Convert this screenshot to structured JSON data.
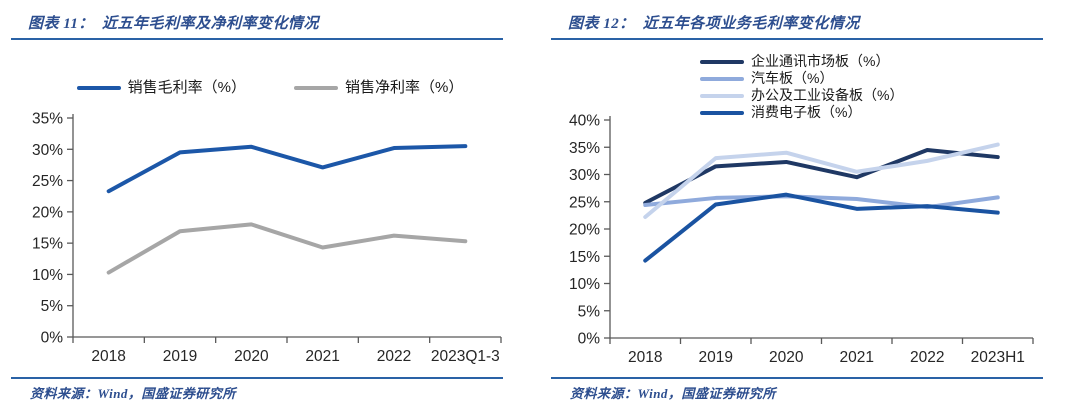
{
  "accent": {
    "rule_color": "#2a62a6",
    "title_color": "#2d4e8f",
    "axis_color": "#595959",
    "tick_label_color": "#262626"
  },
  "panels": [
    {
      "figure_label": "图表 11：",
      "title": "近五年毛利率及净利率变化情况",
      "source": "资料来源：Wind，国盛证券研究所"
    },
    {
      "figure_label": "图表 12：",
      "title": "近五年各项业务毛利率变化情况",
      "source": "资料来源：Wind，国盛证券研究所"
    }
  ],
  "chart_data": [
    {
      "type": "line",
      "title": "近五年毛利率及净利率变化情况",
      "categories": [
        "2018",
        "2019",
        "2020",
        "2021",
        "2022",
        "2023Q1-3"
      ],
      "series": [
        {
          "name": "销售毛利率（%）",
          "color": "#1c57a8",
          "values": [
            23.3,
            29.5,
            30.4,
            27.1,
            30.2,
            30.5
          ]
        },
        {
          "name": "销售净利率（%）",
          "color": "#a6a6a6",
          "values": [
            10.3,
            16.9,
            18.0,
            14.3,
            16.2,
            15.3
          ]
        }
      ],
      "ylim": [
        0,
        35
      ],
      "ytick_step": 5,
      "ytick_suffix": "%",
      "grid": false,
      "legend_position": "top-horizontal"
    },
    {
      "type": "line",
      "title": "近五年各项业务毛利率变化情况",
      "categories": [
        "2018",
        "2019",
        "2020",
        "2021",
        "2022",
        "2023H1"
      ],
      "series": [
        {
          "name": "企业通讯市场板（%）",
          "color": "#1f3864",
          "values": [
            24.8,
            31.5,
            32.3,
            29.5,
            34.5,
            33.2
          ]
        },
        {
          "name": "汽车板（%）",
          "color": "#8faadc",
          "values": [
            24.4,
            25.7,
            26.0,
            25.5,
            24.0,
            25.8
          ]
        },
        {
          "name": "办公及工业设备板（%）",
          "color": "#c5d3ec",
          "values": [
            22.2,
            33.0,
            34.0,
            30.5,
            32.5,
            35.5
          ]
        },
        {
          "name": "消费电子板（%）",
          "color": "#1a53a1",
          "values": [
            14.2,
            24.5,
            26.3,
            23.7,
            24.2,
            23.0
          ]
        }
      ],
      "ylim": [
        0,
        40
      ],
      "ytick_step": 5,
      "ytick_suffix": "%",
      "grid": false,
      "legend_position": "top-left-vertical"
    }
  ]
}
